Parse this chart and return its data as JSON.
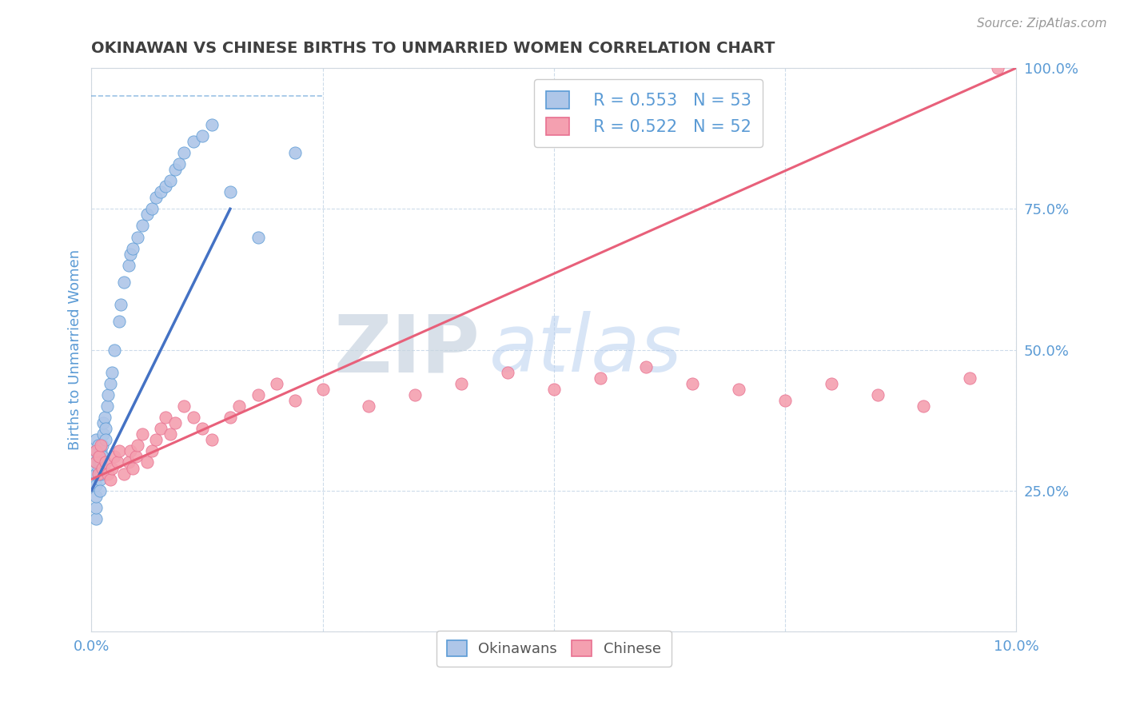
{
  "title": "OKINAWAN VS CHINESE BIRTHS TO UNMARRIED WOMEN CORRELATION CHART",
  "source_text": "Source: ZipAtlas.com",
  "ylabel": "Births to Unmarried Women",
  "xlim": [
    0.0,
    10.0
  ],
  "ylim": [
    0.0,
    100.0
  ],
  "legend_r1": "R = 0.553",
  "legend_n1": "N = 53",
  "legend_r2": "R = 0.522",
  "legend_n2": "N = 52",
  "color_okinawan_fill": "#aec6e8",
  "color_okinawan_edge": "#5b9bd5",
  "color_chinese_fill": "#f4a0b0",
  "color_chinese_edge": "#e87090",
  "color_line_okinawan": "#4472c4",
  "color_line_chinese": "#e8607a",
  "color_axis_labels": "#5b9bd5",
  "color_title": "#404040",
  "watermark_color": "#d0dff0",
  "background_color": "#ffffff",
  "grid_color": "#c8d8e8",
  "okinawan_x": [
    0.05,
    0.05,
    0.05,
    0.05,
    0.05,
    0.05,
    0.05,
    0.05,
    0.07,
    0.07,
    0.07,
    0.08,
    0.08,
    0.09,
    0.09,
    0.1,
    0.1,
    0.1,
    0.12,
    0.12,
    0.13,
    0.13,
    0.14,
    0.15,
    0.15,
    0.17,
    0.18,
    0.2,
    0.22,
    0.25,
    0.3,
    0.32,
    0.35,
    0.4,
    0.42,
    0.45,
    0.5,
    0.55,
    0.6,
    0.65,
    0.7,
    0.75,
    0.8,
    0.85,
    0.9,
    0.95,
    1.0,
    1.1,
    1.2,
    1.3,
    1.5,
    1.8,
    2.2
  ],
  "okinawan_y": [
    20.0,
    22.0,
    24.0,
    26.0,
    28.0,
    30.0,
    32.0,
    34.0,
    33.0,
    31.0,
    29.0,
    30.0,
    28.0,
    27.0,
    25.0,
    30.0,
    28.0,
    32.0,
    33.0,
    31.0,
    35.0,
    37.0,
    38.0,
    36.0,
    34.0,
    40.0,
    42.0,
    44.0,
    46.0,
    50.0,
    55.0,
    58.0,
    62.0,
    65.0,
    67.0,
    68.0,
    70.0,
    72.0,
    74.0,
    75.0,
    77.0,
    78.0,
    79.0,
    80.0,
    82.0,
    83.0,
    85.0,
    87.0,
    88.0,
    90.0,
    78.0,
    70.0,
    85.0
  ],
  "chinese_x": [
    0.05,
    0.05,
    0.07,
    0.08,
    0.1,
    0.12,
    0.15,
    0.18,
    0.2,
    0.22,
    0.25,
    0.28,
    0.3,
    0.35,
    0.4,
    0.42,
    0.45,
    0.48,
    0.5,
    0.55,
    0.6,
    0.65,
    0.7,
    0.75,
    0.8,
    0.85,
    0.9,
    1.0,
    1.1,
    1.2,
    1.3,
    1.5,
    1.6,
    1.8,
    2.0,
    2.2,
    2.5,
    3.0,
    3.5,
    4.0,
    4.5,
    5.0,
    5.5,
    6.0,
    6.5,
    7.0,
    7.5,
    8.0,
    8.5,
    9.0,
    9.5,
    9.8
  ],
  "chinese_y": [
    30.0,
    32.0,
    28.0,
    31.0,
    33.0,
    29.0,
    30.0,
    28.0,
    27.0,
    29.0,
    31.0,
    30.0,
    32.0,
    28.0,
    30.0,
    32.0,
    29.0,
    31.0,
    33.0,
    35.0,
    30.0,
    32.0,
    34.0,
    36.0,
    38.0,
    35.0,
    37.0,
    40.0,
    38.0,
    36.0,
    34.0,
    38.0,
    40.0,
    42.0,
    44.0,
    41.0,
    43.0,
    40.0,
    42.0,
    44.0,
    46.0,
    43.0,
    45.0,
    47.0,
    44.0,
    43.0,
    41.0,
    44.0,
    42.0,
    40.0,
    45.0,
    100.0
  ],
  "okinawan_line_x0": 0.0,
  "okinawan_line_y0": 25.0,
  "okinawan_line_x1": 1.5,
  "okinawan_line_y1": 75.0,
  "chinese_line_x0": 0.0,
  "chinese_line_y0": 27.0,
  "chinese_line_x1": 10.0,
  "chinese_line_y1": 100.0,
  "okinawan_dashed_x0": 0.0,
  "okinawan_dashed_y0": 95.0,
  "okinawan_dashed_x1": 2.5,
  "okinawan_dashed_y1": 95.0
}
